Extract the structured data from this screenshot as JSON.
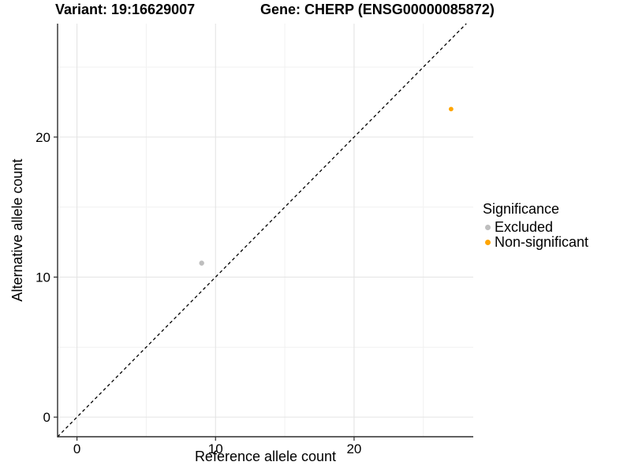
{
  "figure": {
    "title_variant": "Variant: 19:16629007",
    "title_gene": "Gene: CHERP (ENSG00000085872)"
  },
  "chart_data": {
    "type": "scatter",
    "title": "Variant: 19:16629007    Gene: CHERP (ENSG00000085872)",
    "xlabel": "Reference allele count",
    "ylabel": "Alternative allele count",
    "xlim": [
      -1.4,
      28.6
    ],
    "ylim": [
      -1.4,
      28.1
    ],
    "x_major_ticks": [
      0,
      10,
      20
    ],
    "x_minor_ticks": [
      5,
      15,
      25
    ],
    "y_major_ticks": [
      0,
      10,
      20
    ],
    "y_minor_ticks": [
      5,
      15,
      25
    ],
    "grid": true,
    "grid_major_color": "#e4e4e4",
    "grid_minor_color": "#f1f1f1",
    "axis_line_color": "#2b2b2b",
    "reference_line": {
      "type": "identity",
      "style": "dashed",
      "color": "#000000"
    },
    "series": [
      {
        "name": "Excluded",
        "color": "#BEBEBE",
        "point_radius": 3.2,
        "points": [
          {
            "x": 9,
            "y": 11
          }
        ]
      },
      {
        "name": "Non-significant",
        "color": "#FFA500",
        "point_radius": 2.9,
        "points": [
          {
            "x": 27,
            "y": 22
          }
        ]
      }
    ],
    "legend_position": "right"
  },
  "legend": {
    "title": "Significance",
    "items": [
      {
        "label": "Excluded",
        "color": "#BEBEBE"
      },
      {
        "label": "Non-significant",
        "color": "#FFA500"
      }
    ]
  }
}
